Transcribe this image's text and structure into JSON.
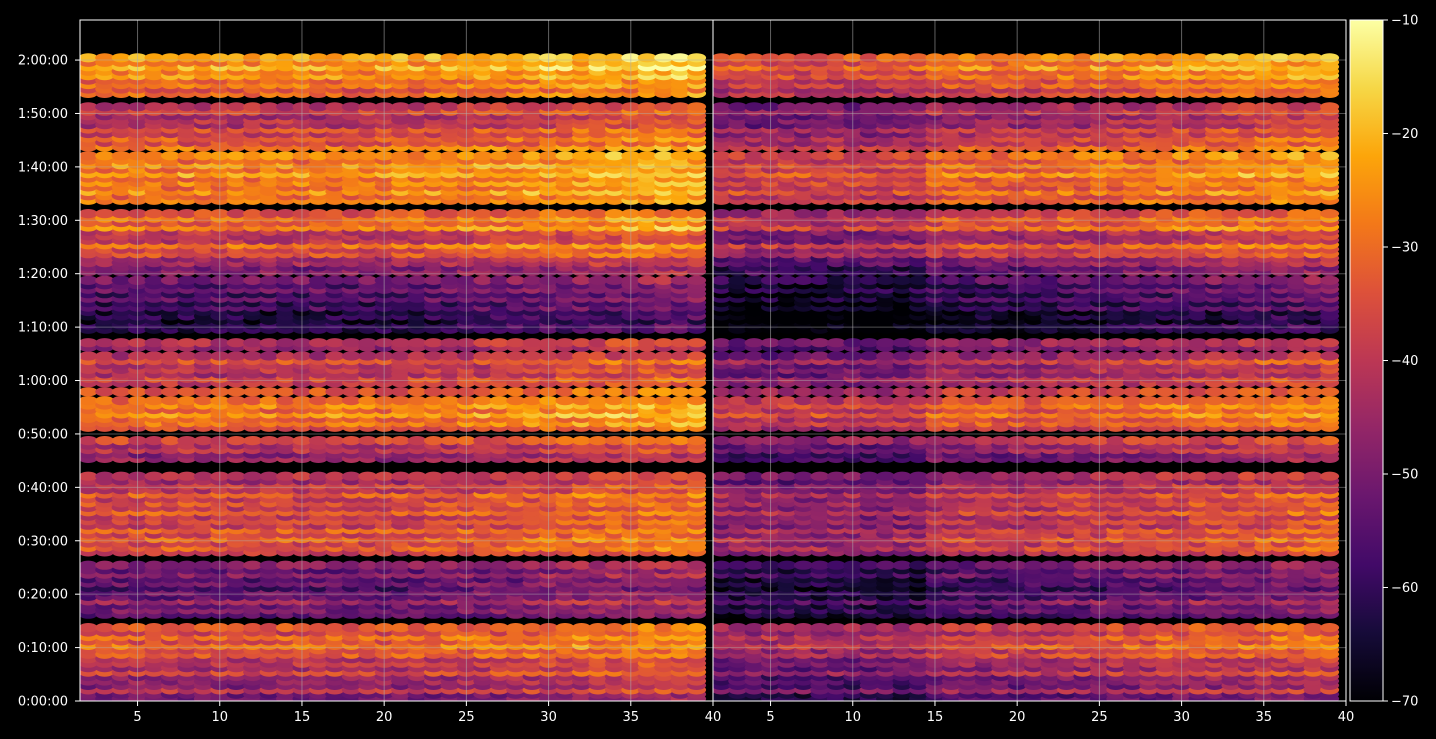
{
  "chart_data": {
    "type": "heatmap",
    "title": "",
    "xlabel": "",
    "ylabel": "",
    "colormap": "inferno",
    "panels": [
      {
        "name": "",
        "xlim": [
          1.5,
          40
        ],
        "xticks": [
          5,
          10,
          15,
          20,
          25,
          30,
          35,
          40
        ]
      },
      {
        "name": "",
        "xlim": [
          1.5,
          40
        ],
        "xticks": [
          5,
          10,
          15,
          20,
          25,
          30,
          35,
          40
        ]
      }
    ],
    "y_axis": {
      "unit": "seconds",
      "range": [
        0,
        7650
      ],
      "ticks": [
        0,
        600,
        1200,
        1800,
        2400,
        3000,
        3600,
        4200,
        4800,
        5400,
        6000,
        6600,
        7200
      ],
      "tick_labels": [
        "0:00:00",
        "0:10:00",
        "0:20:00",
        "0:30:00",
        "0:40:00",
        "0:50:00",
        "1:00:00",
        "1:10:00",
        "1:20:00",
        "1:30:00",
        "1:40:00",
        "1:50:00",
        "2:00:00"
      ]
    },
    "colorbar": {
      "range": [
        -70,
        -10
      ],
      "ticks": [
        -70,
        -60,
        -50,
        -40,
        -30,
        -20,
        -10
      ],
      "tick_labels": [
        "−70",
        "−60",
        "−50",
        "−40",
        "−30",
        "−20",
        "−10"
      ]
    },
    "grid": true,
    "bins": {
      "x": [
        2,
        39
      ],
      "cell_height_s": 100
    },
    "intensity_profile": [
      {
        "t": 0,
        "v": -52
      },
      {
        "t": 100,
        "v": -40
      },
      {
        "t": 200,
        "v": -46
      },
      {
        "t": 300,
        "v": -36
      },
      {
        "t": 400,
        "v": -40
      },
      {
        "t": 500,
        "v": -32
      },
      {
        "t": 600,
        "v": -28
      },
      {
        "t": 700,
        "v": -30
      },
      {
        "t": 800,
        "v": -34
      },
      {
        "t": 900,
        "v": -48
      },
      {
        "t": 1000,
        "v": -50
      },
      {
        "t": 1100,
        "v": -44
      },
      {
        "t": 1200,
        "v": -52
      },
      {
        "t": 1300,
        "v": -52
      },
      {
        "t": 1400,
        "v": -48
      },
      {
        "t": 1500,
        "v": -48
      },
      {
        "t": 1600,
        "v": -34
      },
      {
        "t": 1700,
        "v": -32
      },
      {
        "t": 1800,
        "v": -30
      },
      {
        "t": 1900,
        "v": -32
      },
      {
        "t": 2000,
        "v": -36
      },
      {
        "t": 2100,
        "v": -32
      },
      {
        "t": 2200,
        "v": -34
      },
      {
        "t": 2300,
        "v": -32
      },
      {
        "t": 2400,
        "v": -38
      },
      {
        "t": 2500,
        "v": -40
      },
      {
        "t": 2600,
        "v": -44
      },
      {
        "t": 2700,
        "v": -46
      },
      {
        "t": 2800,
        "v": -40
      },
      {
        "t": 2900,
        "v": -36
      },
      {
        "t": 3000,
        "v": -30
      },
      {
        "t": 3100,
        "v": -28
      },
      {
        "t": 3200,
        "v": -24
      },
      {
        "t": 3300,
        "v": -26
      },
      {
        "t": 3400,
        "v": -24
      },
      {
        "t": 3500,
        "v": -32
      },
      {
        "t": 3600,
        "v": -36
      },
      {
        "t": 3700,
        "v": -40
      },
      {
        "t": 3800,
        "v": -34
      },
      {
        "t": 3900,
        "v": -40
      },
      {
        "t": 4000,
        "v": -42
      },
      {
        "t": 4100,
        "v": -52
      },
      {
        "t": 4200,
        "v": -60
      },
      {
        "t": 4300,
        "v": -62
      },
      {
        "t": 4400,
        "v": -56
      },
      {
        "t": 4500,
        "v": -54
      },
      {
        "t": 4600,
        "v": -52
      },
      {
        "t": 4700,
        "v": -50
      },
      {
        "t": 4800,
        "v": -48
      },
      {
        "t": 4900,
        "v": -44
      },
      {
        "t": 5000,
        "v": -34
      },
      {
        "t": 5100,
        "v": -28
      },
      {
        "t": 5200,
        "v": -42
      },
      {
        "t": 5300,
        "v": -26
      },
      {
        "t": 5400,
        "v": -28
      },
      {
        "t": 5500,
        "v": -30
      },
      {
        "t": 5600,
        "v": -28
      },
      {
        "t": 5700,
        "v": -24
      },
      {
        "t": 5800,
        "v": -26
      },
      {
        "t": 5900,
        "v": -22
      },
      {
        "t": 6000,
        "v": -24
      },
      {
        "t": 6100,
        "v": -26
      },
      {
        "t": 6200,
        "v": -28
      },
      {
        "t": 6300,
        "v": -32
      },
      {
        "t": 6400,
        "v": -34
      },
      {
        "t": 6500,
        "v": -40
      },
      {
        "t": 6600,
        "v": -36
      },
      {
        "t": 6700,
        "v": -34
      },
      {
        "t": 6800,
        "v": -30
      },
      {
        "t": 6900,
        "v": -28
      },
      {
        "t": 7000,
        "v": -24
      },
      {
        "t": 7100,
        "v": -20
      },
      {
        "t": 7200,
        "v": -22
      },
      {
        "t": 7300,
        "v": -26
      },
      {
        "t": 7400,
        "v": -28
      },
      {
        "t": 7500,
        "v": -30
      },
      {
        "t": 7600,
        "v": -34
      },
      {
        "t": 7700,
        "v": -38
      },
      {
        "t": 7800,
        "v": -34
      },
      {
        "t": 7900,
        "v": -30
      }
    ],
    "gaps_s": [
      [
        850,
        900
      ],
      [
        1550,
        1600
      ],
      [
        2550,
        2650
      ],
      [
        2950,
        3000
      ],
      [
        3380,
        3420
      ],
      [
        3500,
        3530
      ],
      [
        3880,
        3920
      ],
      [
        4070,
        4120
      ],
      [
        4730,
        4780
      ],
      [
        5520,
        5550
      ],
      [
        6150,
        6180
      ],
      [
        6700,
        6770
      ],
      [
        7270,
        7610
      ],
      [
        7720,
        7760
      ]
    ],
    "x_trend_s": {
      "start_bin": 20,
      "boost": 8
    }
  }
}
